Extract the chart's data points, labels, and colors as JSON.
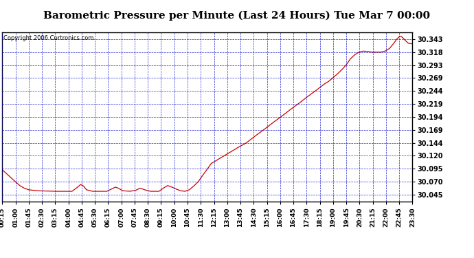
{
  "title": "Barometric Pressure per Minute (Last 24 Hours) Tue Mar 7 00:00",
  "copyright": "Copyright 2006 Curtronics.com",
  "fig_bg_color": "#ffffff",
  "plot_bg_color": "#ffffff",
  "line_color": "#cc0000",
  "title_color": "#000000",
  "grid_color": "#0000cc",
  "yticks": [
    30.045,
    30.07,
    30.095,
    30.12,
    30.144,
    30.169,
    30.194,
    30.219,
    30.244,
    30.269,
    30.293,
    30.318,
    30.343
  ],
  "ylim": [
    30.033,
    30.356
  ],
  "xtick_labels": [
    "00:15",
    "01:00",
    "01:45",
    "02:30",
    "03:15",
    "04:00",
    "04:45",
    "05:30",
    "06:15",
    "07:00",
    "07:45",
    "08:30",
    "09:15",
    "10:00",
    "10:45",
    "11:30",
    "12:15",
    "13:00",
    "13:45",
    "14:30",
    "15:15",
    "16:00",
    "16:45",
    "17:30",
    "18:15",
    "19:00",
    "19:45",
    "20:30",
    "21:15",
    "22:00",
    "22:45",
    "23:30"
  ],
  "key_points": [
    [
      0,
      30.093
    ],
    [
      30,
      30.078
    ],
    [
      45,
      30.07
    ],
    [
      60,
      30.063
    ],
    [
      75,
      30.058
    ],
    [
      90,
      30.055
    ],
    [
      120,
      30.053
    ],
    [
      180,
      30.052
    ],
    [
      240,
      30.052
    ],
    [
      255,
      30.058
    ],
    [
      270,
      30.065
    ],
    [
      280,
      30.062
    ],
    [
      290,
      30.055
    ],
    [
      310,
      30.052
    ],
    [
      360,
      30.052
    ],
    [
      375,
      30.056
    ],
    [
      390,
      30.06
    ],
    [
      400,
      30.058
    ],
    [
      415,
      30.053
    ],
    [
      440,
      30.052
    ],
    [
      460,
      30.054
    ],
    [
      475,
      30.058
    ],
    [
      490,
      30.055
    ],
    [
      510,
      30.052
    ],
    [
      540,
      30.052
    ],
    [
      555,
      30.058
    ],
    [
      570,
      30.063
    ],
    [
      585,
      30.06
    ],
    [
      600,
      30.056
    ],
    [
      615,
      30.053
    ],
    [
      630,
      30.052
    ],
    [
      645,
      30.055
    ],
    [
      660,
      30.062
    ],
    [
      675,
      30.07
    ],
    [
      690,
      30.082
    ],
    [
      705,
      30.093
    ],
    [
      720,
      30.105
    ],
    [
      750,
      30.115
    ],
    [
      780,
      30.125
    ],
    [
      810,
      30.135
    ],
    [
      840,
      30.144
    ],
    [
      870,
      30.157
    ],
    [
      900,
      30.169
    ],
    [
      930,
      30.182
    ],
    [
      960,
      30.194
    ],
    [
      990,
      30.207
    ],
    [
      1020,
      30.219
    ],
    [
      1050,
      30.232
    ],
    [
      1065,
      30.238
    ],
    [
      1080,
      30.244
    ],
    [
      1110,
      30.257
    ],
    [
      1125,
      30.262
    ],
    [
      1140,
      30.269
    ],
    [
      1155,
      30.276
    ],
    [
      1170,
      30.284
    ],
    [
      1185,
      30.293
    ],
    [
      1200,
      30.305
    ],
    [
      1215,
      30.313
    ],
    [
      1230,
      30.318
    ],
    [
      1245,
      30.32
    ],
    [
      1260,
      30.319
    ],
    [
      1275,
      30.318
    ],
    [
      1290,
      30.318
    ],
    [
      1305,
      30.318
    ],
    [
      1320,
      30.32
    ],
    [
      1335,
      30.325
    ],
    [
      1350,
      30.335
    ],
    [
      1360,
      30.343
    ],
    [
      1370,
      30.348
    ],
    [
      1375,
      30.348
    ],
    [
      1380,
      30.346
    ],
    [
      1390,
      30.34
    ],
    [
      1400,
      30.335
    ],
    [
      1410,
      30.334
    ],
    [
      1414,
      30.334
    ]
  ]
}
